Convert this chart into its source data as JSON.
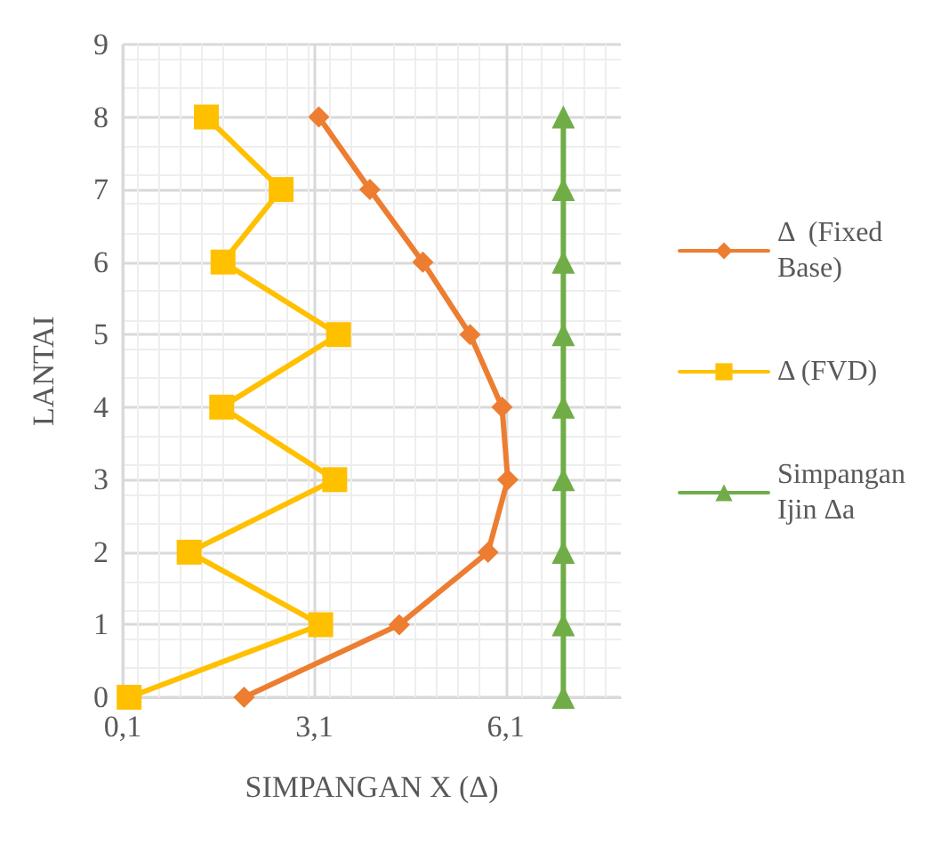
{
  "chart_data": {
    "type": "line",
    "xlabel": "SIMPANGAN X (Δ)",
    "ylabel": "LANTAI",
    "xlim": [
      0.1,
      7.9
    ],
    "xticks": [
      {
        "value": 0.1,
        "label": "0,1"
      },
      {
        "value": 3.1,
        "label": "3,1"
      },
      {
        "value": 6.1,
        "label": "6,1"
      }
    ],
    "ylim": [
      0,
      9
    ],
    "yticks": [
      0,
      1,
      2,
      3,
      4,
      5,
      6,
      7,
      8,
      9
    ],
    "grid": true,
    "legend": "right",
    "series": [
      {
        "name": "Δ  (Fixed Base)",
        "color": "#ed7d31",
        "marker": "diamond",
        "x": [
          2.0,
          4.43,
          5.82,
          6.13,
          6.04,
          5.54,
          4.8,
          3.97,
          3.17
        ],
        "values": [
          0,
          1,
          2,
          3,
          4,
          5,
          6,
          7,
          8
        ]
      },
      {
        "name": "Δ (FVD)",
        "color": "#ffc000",
        "marker": "square",
        "x": [
          0.2,
          3.2,
          1.14,
          3.42,
          1.65,
          3.48,
          1.67,
          2.58,
          1.41
        ],
        "values": [
          0,
          1,
          2,
          3,
          4,
          5,
          6,
          7,
          8
        ]
      },
      {
        "name": "Simpangan Ijin Δa",
        "color": "#70ad47",
        "marker": "triangle",
        "x": [
          7.0,
          7.0,
          7.0,
          7.0,
          7.0,
          7.0,
          7.0,
          7.0,
          7.0
        ],
        "values": [
          0,
          1,
          2,
          3,
          4,
          5,
          6,
          7,
          8
        ]
      }
    ]
  }
}
